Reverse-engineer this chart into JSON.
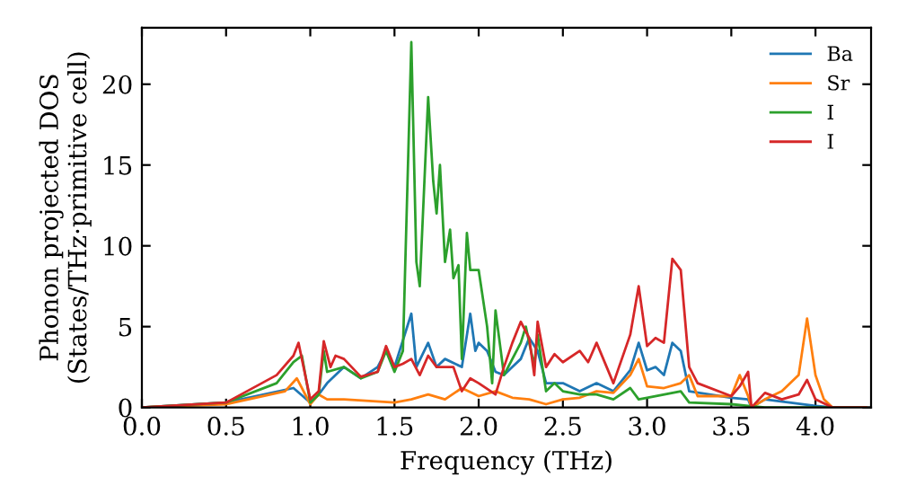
{
  "chart_data": {
    "type": "line",
    "xlabel": "Frequency (THz)",
    "ylabel": "Phonon projected DOS\n(States/THz·primitive cell)",
    "xlim": [
      0,
      4.33
    ],
    "ylim": [
      0,
      23.5
    ],
    "xticks": [
      {
        "value": 0,
        "label": "0.0"
      },
      {
        "value": 0.5,
        "label": "0.5"
      },
      {
        "value": 1,
        "label": "1.0"
      },
      {
        "value": 1.5,
        "label": "1.5"
      },
      {
        "value": 2,
        "label": "2.0"
      },
      {
        "value": 2.5,
        "label": "2.5"
      },
      {
        "value": 3,
        "label": "3.0"
      },
      {
        "value": 3.5,
        "label": "3.5"
      },
      {
        "value": 4,
        "label": "4.0"
      }
    ],
    "yticks": [
      0,
      5,
      10,
      15,
      20
    ],
    "grid": false,
    "legend": "top right",
    "marker": "none",
    "line_style": "solid",
    "series": [
      {
        "name": "Ba",
        "color": "#1f77b4",
        "x": [
          0,
          0.5,
          0.9,
          1.0,
          1.05,
          1.1,
          1.2,
          1.3,
          1.4,
          1.45,
          1.5,
          1.6,
          1.63,
          1.7,
          1.75,
          1.8,
          1.9,
          1.95,
          1.98,
          2.0,
          2.05,
          2.1,
          2.15,
          2.2,
          2.25,
          2.3,
          2.35,
          2.4,
          2.5,
          2.6,
          2.7,
          2.8,
          2.9,
          2.95,
          3.0,
          3.05,
          3.1,
          3.15,
          3.2,
          3.25,
          3.5,
          3.6,
          3.62,
          3.7,
          4.0,
          4.1,
          4.3
        ],
        "values": [
          0,
          0.3,
          1.2,
          0.3,
          0.8,
          1.5,
          2.5,
          1.8,
          2.5,
          3.5,
          2.5,
          5.8,
          2.5,
          4.0,
          2.5,
          3,
          2.5,
          5.8,
          3.5,
          4,
          3.5,
          2.2,
          2,
          2.5,
          3,
          4.3,
          3.5,
          1.5,
          1.5,
          1.0,
          1.5,
          1.0,
          2.3,
          4.0,
          2.3,
          2.5,
          2.0,
          4.0,
          3.5,
          1.0,
          0.6,
          0.5,
          0,
          0.5,
          0.1,
          0,
          0
        ]
      },
      {
        "name": "Sr",
        "color": "#ff7f0e",
        "x": [
          0,
          0.5,
          0.85,
          0.92,
          1.0,
          1.05,
          1.1,
          1.2,
          1.5,
          1.6,
          1.7,
          1.8,
          1.9,
          2.0,
          2.1,
          2.2,
          2.3,
          2.4,
          2.5,
          2.6,
          2.7,
          2.8,
          2.9,
          2.95,
          3.0,
          3.1,
          3.2,
          3.25,
          3.3,
          3.5,
          3.55,
          3.6,
          3.62,
          3.7,
          3.8,
          3.9,
          3.95,
          4.0,
          4.05,
          4.1,
          4.3
        ],
        "values": [
          0,
          0.2,
          1,
          1.8,
          0.2,
          0.8,
          0.5,
          0.5,
          0.3,
          0.5,
          0.8,
          0.5,
          1.2,
          0.7,
          1.0,
          0.6,
          0.5,
          0.2,
          0.5,
          0.6,
          1.0,
          0.9,
          2.0,
          3.0,
          1.3,
          1.2,
          1.5,
          2.0,
          0.7,
          0.7,
          2.0,
          0.7,
          0,
          0.5,
          1.0,
          2.0,
          5.5,
          2,
          0.5,
          0,
          0
        ]
      },
      {
        "name": "I",
        "color": "#2ca02c",
        "x": [
          0,
          0.5,
          0.8,
          0.9,
          0.95,
          1.0,
          1.05,
          1.08,
          1.1,
          1.2,
          1.3,
          1.4,
          1.45,
          1.5,
          1.55,
          1.6,
          1.63,
          1.65,
          1.7,
          1.73,
          1.75,
          1.77,
          1.8,
          1.83,
          1.85,
          1.88,
          1.9,
          1.93,
          1.95,
          2.0,
          2.05,
          2.08,
          2.1,
          2.15,
          2.2,
          2.25,
          2.28,
          2.3,
          2.33,
          2.35,
          2.4,
          2.45,
          2.5,
          2.6,
          2.7,
          2.8,
          2.9,
          2.95,
          3.0,
          3.2,
          3.25,
          3.5,
          3.6,
          3.7,
          4.0,
          4.3
        ],
        "values": [
          0,
          0.3,
          1.5,
          2.8,
          3.2,
          0.3,
          0.8,
          3.5,
          2.2,
          2.5,
          1.8,
          2.2,
          3.5,
          2.2,
          3.5,
          22.6,
          9,
          7.5,
          19.2,
          14,
          12,
          15,
          9,
          11,
          8,
          8.8,
          3,
          10.8,
          8.5,
          8.5,
          5,
          1.5,
          6,
          2,
          3,
          4,
          5,
          4,
          2.6,
          4.5,
          1,
          1.5,
          1,
          0.8,
          0.8,
          0.5,
          1.2,
          0.5,
          0.6,
          1,
          0.3,
          0.2,
          0.1,
          0,
          0,
          0
        ]
      },
      {
        "name": "I",
        "color": "#d62728",
        "x": [
          0,
          0.5,
          0.8,
          0.9,
          0.93,
          1.0,
          1.05,
          1.08,
          1.12,
          1.15,
          1.2,
          1.3,
          1.4,
          1.45,
          1.5,
          1.55,
          1.6,
          1.65,
          1.7,
          1.75,
          1.85,
          1.9,
          1.95,
          2.0,
          2.1,
          2.15,
          2.2,
          2.25,
          2.3,
          2.33,
          2.35,
          2.4,
          2.45,
          2.5,
          2.6,
          2.65,
          2.7,
          2.8,
          2.9,
          2.95,
          3.0,
          3.05,
          3.1,
          3.15,
          3.2,
          3.25,
          3.3,
          3.5,
          3.55,
          3.6,
          3.62,
          3.7,
          3.8,
          3.9,
          3.95,
          4.0,
          4.1,
          4.3
        ],
        "values": [
          0,
          0.3,
          2,
          3.2,
          4,
          0.5,
          1,
          4.1,
          2.5,
          3.2,
          3.0,
          1.9,
          2.2,
          3.8,
          2.5,
          2.7,
          3.0,
          2.0,
          3.2,
          2.5,
          2.5,
          1.0,
          1.8,
          1.5,
          0.8,
          2.5,
          4,
          5.3,
          4.3,
          2,
          5.3,
          2.5,
          3.3,
          2.8,
          3.5,
          2.8,
          4.0,
          1.5,
          4.5,
          7.5,
          3.8,
          4.3,
          4.0,
          9.2,
          8.5,
          2.5,
          1.5,
          0.7,
          1.3,
          2.2,
          0,
          0.9,
          0.5,
          0.8,
          1.7,
          0.5,
          0,
          0
        ]
      }
    ]
  }
}
